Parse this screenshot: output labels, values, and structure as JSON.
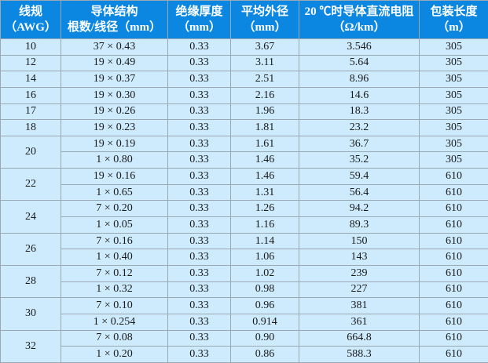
{
  "colors": {
    "header_bg": "#0b87e2",
    "cell_bg": "#cdebfd",
    "border": "#9aa8b4"
  },
  "headers": [
    {
      "line1": "线规",
      "line2": "（AWG）"
    },
    {
      "line1": "导体结构",
      "line2": "根数/线径（mm）"
    },
    {
      "line1": "绝缘厚度",
      "line2": "（mm）"
    },
    {
      "line1": "平均外径",
      "line2": "（mm）"
    },
    {
      "line1": "20 ℃时导体直流电阻",
      "line2": "（Ω/km）"
    },
    {
      "line1": "包装长度",
      "line2": "（m）"
    }
  ],
  "groups": [
    {
      "awg": "10",
      "rows": [
        [
          "37 × 0.43",
          "0.33",
          "3.67",
          "3.546",
          "305"
        ]
      ]
    },
    {
      "awg": "12",
      "rows": [
        [
          "19 × 0.49",
          "0.33",
          "3.11",
          "5.64",
          "305"
        ]
      ]
    },
    {
      "awg": "14",
      "rows": [
        [
          "19 × 0.37",
          "0.33",
          "2.51",
          "8.96",
          "305"
        ]
      ]
    },
    {
      "awg": "16",
      "rows": [
        [
          "19 × 0.30",
          "0.33",
          "2.16",
          "14.6",
          "305"
        ]
      ]
    },
    {
      "awg": "17",
      "rows": [
        [
          "19 × 0.26",
          "0.33",
          "1.96",
          "18.3",
          "305"
        ]
      ]
    },
    {
      "awg": "18",
      "rows": [
        [
          "19 × 0.23",
          "0.33",
          "1.81",
          "23.2",
          "305"
        ]
      ]
    },
    {
      "awg": "20",
      "rows": [
        [
          "19 × 0.19",
          "0.33",
          "1.61",
          "36.7",
          "305"
        ],
        [
          "1 × 0.80",
          "0.33",
          "1.46",
          "35.2",
          "305"
        ]
      ]
    },
    {
      "awg": "22",
      "rows": [
        [
          "19 × 0.16",
          "0.33",
          "1.46",
          "59.4",
          "610"
        ],
        [
          "1 × 0.65",
          "0.33",
          "1.31",
          "56.4",
          "610"
        ]
      ]
    },
    {
      "awg": "24",
      "rows": [
        [
          "7 × 0.20",
          "0.33",
          "1.26",
          "94.2",
          "610"
        ],
        [
          "1 × 0.05",
          "0.33",
          "1.16",
          "89.3",
          "610"
        ]
      ]
    },
    {
      "awg": "26",
      "rows": [
        [
          "7 × 0.16",
          "0.33",
          "1.14",
          "150",
          "610"
        ],
        [
          "1 × 0.40",
          "0.33",
          "1.06",
          "143",
          "610"
        ]
      ]
    },
    {
      "awg": "28",
      "rows": [
        [
          "7 × 0.12",
          "0.33",
          "1.02",
          "239",
          "610"
        ],
        [
          "1 × 0.32",
          "0.33",
          "0.98",
          "227",
          "610"
        ]
      ]
    },
    {
      "awg": "30",
      "rows": [
        [
          "7 × 0.10",
          "0.33",
          "0.96",
          "381",
          "610"
        ],
        [
          "1 × 0.254",
          "0.33",
          "0.914",
          "361",
          "610"
        ]
      ]
    },
    {
      "awg": "32",
      "rows": [
        [
          "7 × 0.08",
          "0.33",
          "0.90",
          "664.8",
          "610"
        ],
        [
          "1 × 0.20",
          "0.33",
          "0.86",
          "588.3",
          "610"
        ]
      ]
    }
  ]
}
